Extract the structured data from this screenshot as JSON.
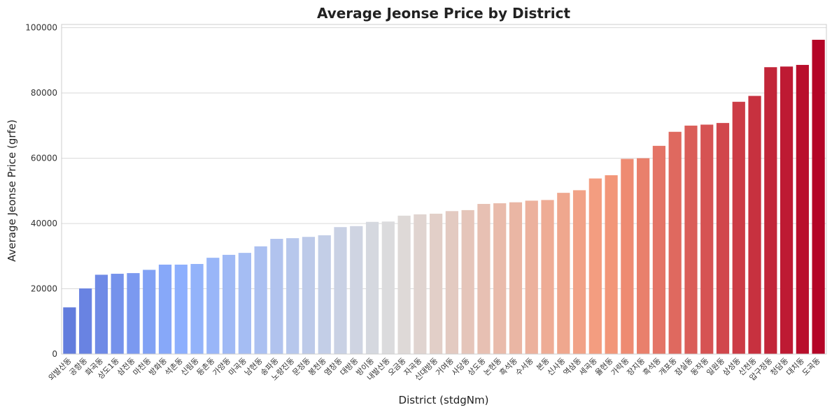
{
  "chart_data": {
    "type": "bar",
    "title": "Average Jeonse Price by District",
    "xlabel": "District (stdgNm)",
    "ylabel": "Average Jeonse Price (grfe)",
    "ylim": [
      0,
      101000
    ],
    "yticks": [
      0,
      20000,
      40000,
      60000,
      80000,
      100000
    ],
    "grid": "horizontal",
    "palette": "coolwarm",
    "categories": [
      "외발산동",
      "공항동",
      "화곡동",
      "상도1동",
      "삼전동",
      "마천동",
      "방화동",
      "석촌동",
      "신림동",
      "등촌동",
      "가양동",
      "마곡동",
      "남현동",
      "송파동",
      "노량진동",
      "문정동",
      "봉천동",
      "염창동",
      "대방동",
      "방이동",
      "내발산동",
      "오금동",
      "자곡동",
      "신대방동",
      "거여동",
      "사당동",
      "상도동",
      "논현동",
      "흑석동",
      "수서동",
      "본동",
      "신사동",
      "역삼동",
      "세곡동",
      "율현동",
      "가락동",
      "장지동",
      "흑석동",
      "개포동",
      "잠실동",
      "동작동",
      "일원동",
      "삼성동",
      "신천동",
      "압구정동",
      "청담동",
      "대치동",
      "도곡동"
    ],
    "values": [
      14300,
      20100,
      24300,
      24600,
      24800,
      25800,
      27400,
      27400,
      27600,
      29500,
      30400,
      31000,
      33000,
      35300,
      35500,
      35900,
      36400,
      38900,
      39200,
      40500,
      40600,
      42400,
      42800,
      43000,
      43800,
      44100,
      46000,
      46200,
      46500,
      47000,
      47200,
      49400,
      50200,
      53800,
      54800,
      59800,
      60000,
      63800,
      68100,
      70000,
      70300,
      70800,
      77300,
      79100,
      87900,
      88100,
      88600,
      96300
    ]
  }
}
